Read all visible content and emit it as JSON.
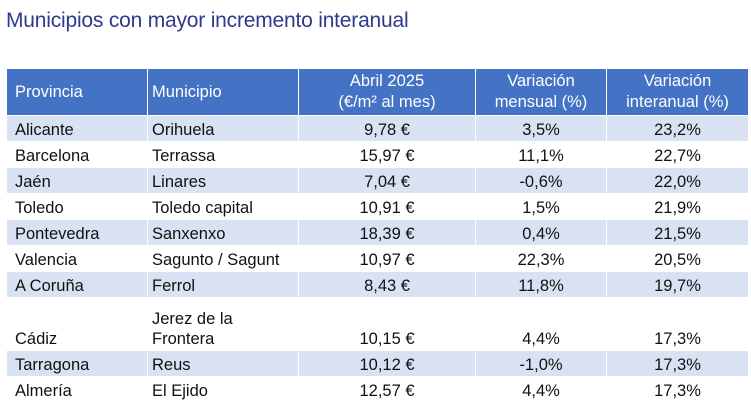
{
  "title": "Municipios con mayor incremento interanual",
  "table": {
    "headers": {
      "provincia": "Provincia",
      "municipio": "Municipio",
      "precio_line1": "Abril 2025",
      "precio_line2": "(€/m² al mes)",
      "mensual_line1": "Variación",
      "mensual_line2": "mensual (%)",
      "interanual_line1": "Variación",
      "interanual_line2": "interanual (%)"
    },
    "rows": [
      {
        "provincia": "Alicante",
        "municipio": "Orihuela",
        "precio": "9,78 €",
        "mensual": "3,5%",
        "interanual": "23,2%"
      },
      {
        "provincia": "Barcelona",
        "municipio": "Terrassa",
        "precio": "15,97 €",
        "mensual": "11,1%",
        "interanual": "22,7%"
      },
      {
        "provincia": "Jaén",
        "municipio": "Linares",
        "precio": "7,04 €",
        "mensual": "-0,6%",
        "interanual": "22,0%"
      },
      {
        "provincia": "Toledo",
        "municipio": "Toledo capital",
        "precio": "10,91 €",
        "mensual": "1,5%",
        "interanual": "21,9%"
      },
      {
        "provincia": "Pontevedra",
        "municipio": "Sanxenxo",
        "precio": "18,39 €",
        "mensual": "0,4%",
        "interanual": "21,5%"
      },
      {
        "provincia": "Valencia",
        "municipio": "Sagunto / Sagunt",
        "precio": "10,97 €",
        "mensual": "22,3%",
        "interanual": "20,5%"
      },
      {
        "provincia": "A Coruña",
        "municipio": "Ferrol",
        "precio": "8,43 €",
        "mensual": "11,8%",
        "interanual": "19,7%"
      },
      {
        "provincia": "Cádiz",
        "municipio_line1": "Jerez de la",
        "municipio_line2": "Frontera",
        "precio": "10,15 €",
        "mensual": "4,4%",
        "interanual": "17,3%"
      },
      {
        "provincia": "Tarragona",
        "municipio": "Reus",
        "precio": "10,12 €",
        "mensual": "-1,0%",
        "interanual": "17,3%"
      },
      {
        "provincia": "Almería",
        "municipio": "El Ejido",
        "precio": "12,57 €",
        "mensual": "4,4%",
        "interanual": "17,3%"
      }
    ],
    "colors": {
      "header_bg": "#4472c4",
      "band_bg": "#d9e2f3",
      "title": "#2e3a8c",
      "negative": "#b0203a"
    }
  }
}
